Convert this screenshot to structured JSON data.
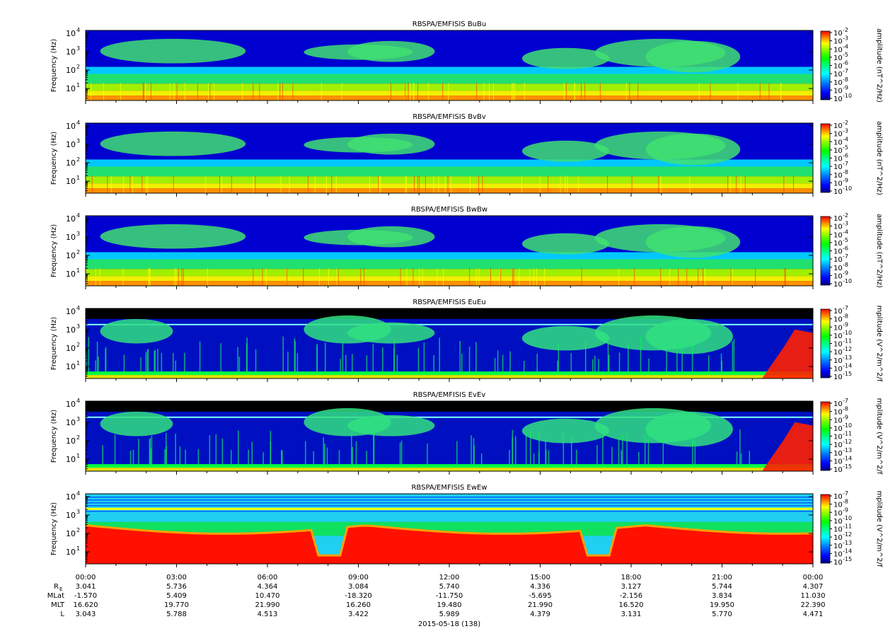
{
  "chart_data": [
    {
      "type": "heatmap",
      "title": "RBSPA/EMFISIS  BuBu",
      "ylabel": "Frequency (Hz)",
      "y_scale": "log",
      "y_ticks": [
        "10",
        "10",
        "10",
        "10"
      ],
      "y_tick_exponents": [
        "1",
        "2",
        "3",
        "4"
      ],
      "colorbar_label": "amplitude (nT^2/Hz)",
      "colorbar_ticks": [
        "10",
        "10",
        "10",
        "10",
        "10",
        "10",
        "10",
        "10",
        "10"
      ],
      "colorbar_tick_exponents": [
        "-2",
        "-3",
        "-4",
        "-5",
        "-6",
        "-7",
        "-8",
        "-9",
        "-10"
      ],
      "colorbar_range": [
        -10,
        -2
      ]
    },
    {
      "type": "heatmap",
      "title": "RBSPA/EMFISIS  BvBv",
      "ylabel": "Frequency (Hz)",
      "y_scale": "log",
      "y_ticks": [
        "10",
        "10",
        "10",
        "10"
      ],
      "y_tick_exponents": [
        "1",
        "2",
        "3",
        "4"
      ],
      "colorbar_label": "amplitude (nT^2/Hz)",
      "colorbar_ticks": [
        "10",
        "10",
        "10",
        "10",
        "10",
        "10",
        "10",
        "10",
        "10"
      ],
      "colorbar_tick_exponents": [
        "-2",
        "-3",
        "-4",
        "-5",
        "-6",
        "-7",
        "-8",
        "-9",
        "-10"
      ],
      "colorbar_range": [
        -10,
        -2
      ]
    },
    {
      "type": "heatmap",
      "title": "RBSPA/EMFISIS  BwBw",
      "ylabel": "Frequency (Hz)",
      "y_scale": "log",
      "y_ticks": [
        "10",
        "10",
        "10",
        "10"
      ],
      "y_tick_exponents": [
        "1",
        "2",
        "3",
        "4"
      ],
      "colorbar_label": "amplitude (nT^2/Hz)",
      "colorbar_ticks": [
        "10",
        "10",
        "10",
        "10",
        "10",
        "10",
        "10",
        "10",
        "10"
      ],
      "colorbar_tick_exponents": [
        "-2",
        "-3",
        "-4",
        "-5",
        "-6",
        "-7",
        "-8",
        "-9",
        "-10"
      ],
      "colorbar_range": [
        -10,
        -2
      ]
    },
    {
      "type": "heatmap",
      "title": "RBSPA/EMFISIS  EuEu",
      "ylabel": "Frequency (Hz)",
      "y_scale": "log",
      "y_ticks": [
        "10",
        "10",
        "10",
        "10"
      ],
      "y_tick_exponents": [
        "1",
        "2",
        "3",
        "4"
      ],
      "colorbar_label": "mplitude (V^2/m^2/f",
      "colorbar_ticks": [
        "10",
        "10",
        "10",
        "10",
        "10",
        "10",
        "10",
        "10",
        "10"
      ],
      "colorbar_tick_exponents": [
        "-7",
        "-8",
        "-9",
        "-10",
        "-11",
        "-12",
        "-13",
        "-14",
        "-15"
      ],
      "colorbar_range": [
        -15,
        -7
      ]
    },
    {
      "type": "heatmap",
      "title": "RBSPA/EMFISIS  EvEv",
      "ylabel": "Frequency (Hz)",
      "y_scale": "log",
      "y_ticks": [
        "10",
        "10",
        "10",
        "10"
      ],
      "y_tick_exponents": [
        "1",
        "2",
        "3",
        "4"
      ],
      "colorbar_label": "mplitude (V^2/m^2/f",
      "colorbar_ticks": [
        "10",
        "10",
        "10",
        "10",
        "10",
        "10",
        "10",
        "10",
        "10"
      ],
      "colorbar_tick_exponents": [
        "-7",
        "-8",
        "-9",
        "-10",
        "-11",
        "-12",
        "-13",
        "-14",
        "-15"
      ],
      "colorbar_range": [
        -15,
        -7
      ]
    },
    {
      "type": "heatmap",
      "title": "RBSPA/EMFISIS  EwEw",
      "ylabel": "Frequency (Hz)",
      "y_scale": "log",
      "y_ticks": [
        "10",
        "10",
        "10",
        "10"
      ],
      "y_tick_exponents": [
        "1",
        "2",
        "3",
        "4"
      ],
      "colorbar_label": "mplitude (V^2/m^2/f",
      "colorbar_ticks": [
        "10",
        "10",
        "10",
        "10",
        "10",
        "10",
        "10",
        "10",
        "10"
      ],
      "colorbar_tick_exponents": [
        "-7",
        "-8",
        "-9",
        "-10",
        "-11",
        "-12",
        "-13",
        "-14",
        "-15"
      ],
      "colorbar_range": [
        -15,
        -7
      ]
    }
  ],
  "colorscale": [
    "#000080",
    "#0000ff",
    "#0080ff",
    "#00ffff",
    "#00ff80",
    "#00ff00",
    "#80ff00",
    "#ffff00",
    "#ff8000",
    "#ff0000"
  ],
  "x_axis": {
    "ticks": [
      "00:00",
      "03:00",
      "06:00",
      "09:00",
      "12:00",
      "15:00",
      "18:00",
      "21:00",
      "00:00"
    ],
    "date_label": "2015-05-18 (138)"
  },
  "ephemeris": {
    "labels": [
      "R",
      "MLat",
      "MLT",
      "L"
    ],
    "r_subscript": "E",
    "rows": [
      [
        "3.041",
        "5.736",
        "4.364",
        "3.084",
        "5.740",
        "4.336",
        "3.127",
        "5.744",
        "4.307"
      ],
      [
        "-1.570",
        "5.409",
        "10.470",
        "-18.320",
        "-11.750",
        "-5.695",
        "-2.156",
        "3.834",
        "11.030"
      ],
      [
        "16.620",
        "19.770",
        "21.990",
        "16.260",
        "19.480",
        "21.990",
        "16.520",
        "19.950",
        "22.390"
      ],
      [
        "3.043",
        "5.788",
        "4.513",
        "3.422",
        "5.989",
        "4.379",
        "3.131",
        "5.770",
        "4.471"
      ]
    ]
  }
}
